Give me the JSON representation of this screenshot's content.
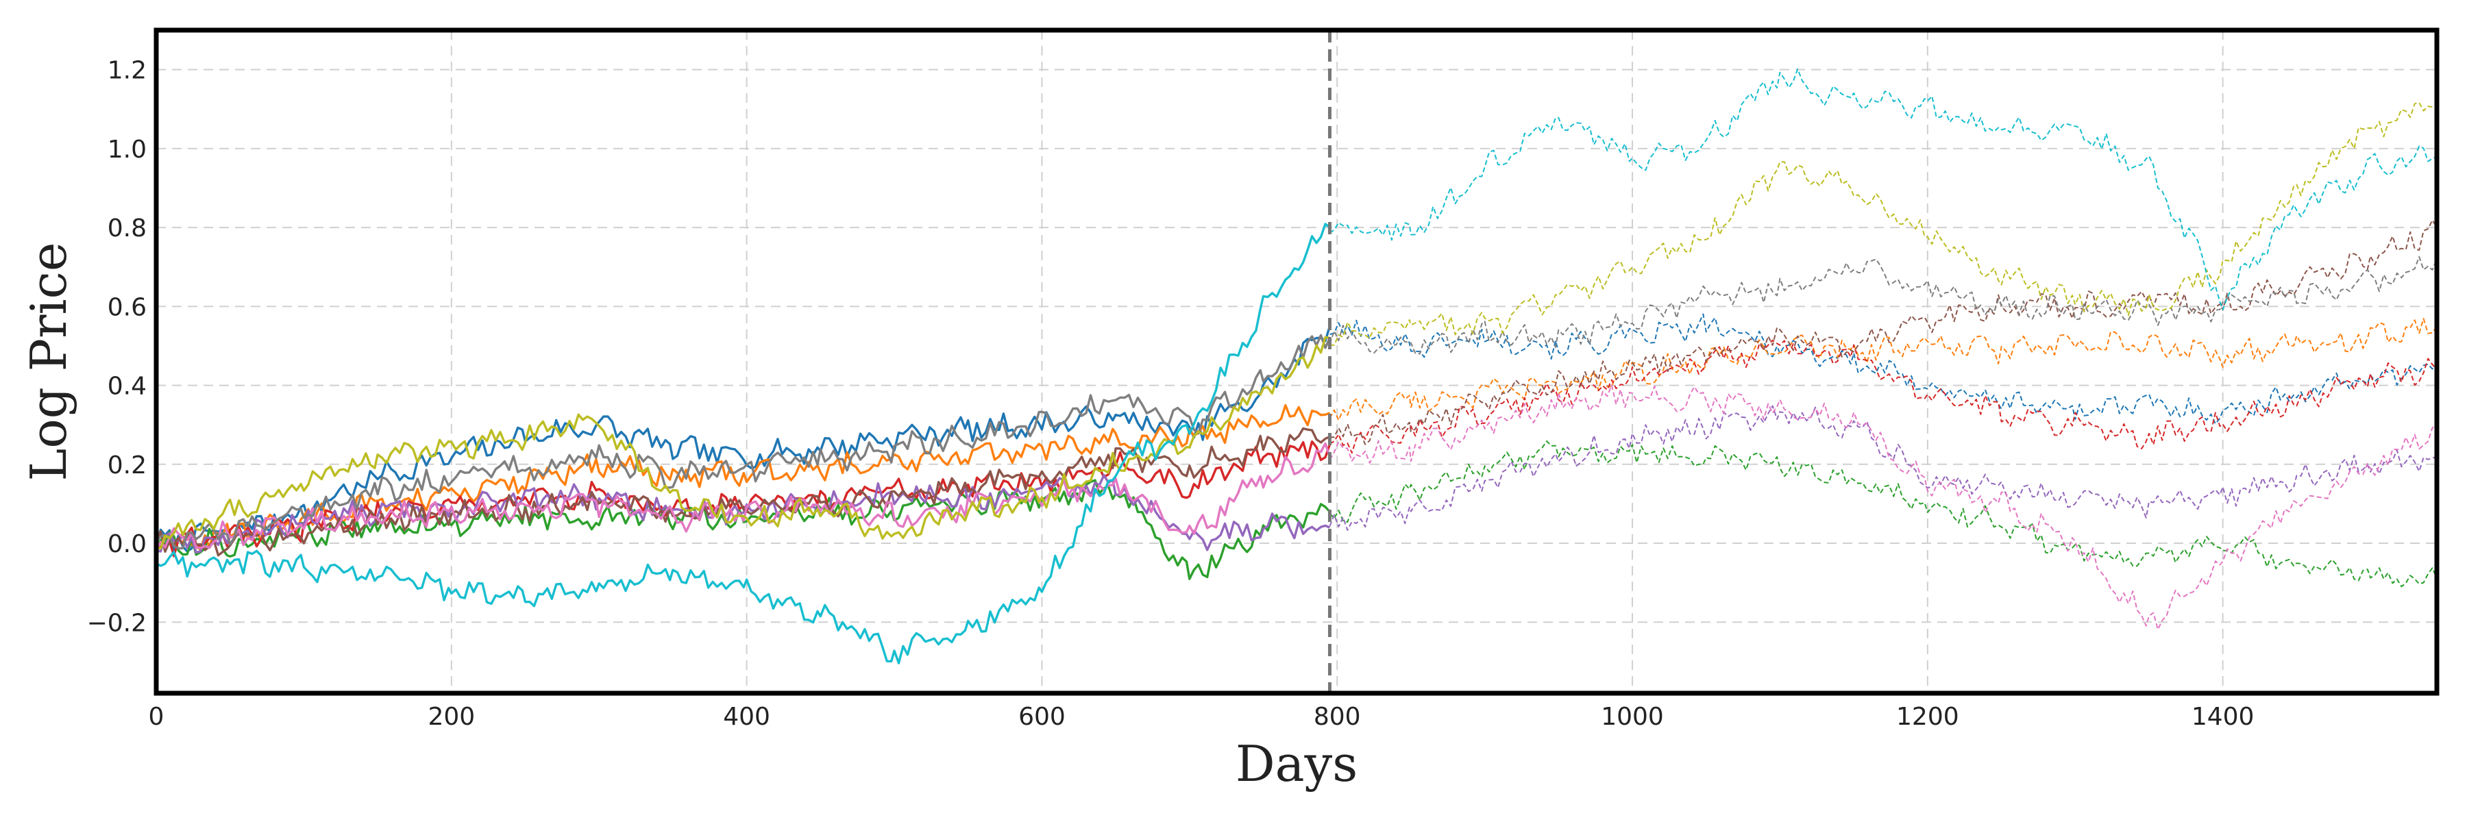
{
  "chart_data": {
    "type": "line",
    "title": "",
    "xlabel": "Days",
    "ylabel": "Log Price",
    "xlim": [
      0,
      1545
    ],
    "ylim": [
      -0.38,
      1.3
    ],
    "xticks": [
      0,
      200,
      400,
      600,
      800,
      1000,
      1200,
      1400
    ],
    "yticks": [
      -0.2,
      0.0,
      0.2,
      0.4,
      0.6,
      0.8,
      1.0,
      1.2
    ],
    "ytick_labels": [
      "−0.2",
      "0.0",
      "0.2",
      "0.4",
      "0.6",
      "0.8",
      "1.0",
      "1.2"
    ],
    "grid": true,
    "split_day": 795,
    "split_style": "dashed vertical line; solid historical series before it, thin dashed continuations after it",
    "series": [
      {
        "color": "#1f77b4",
        "x": [
          0,
          50,
          100,
          150,
          200,
          250,
          300,
          350,
          400,
          450,
          500,
          550,
          600,
          650,
          700,
          750,
          795,
          850,
          900,
          950,
          1000,
          1050,
          1100,
          1150,
          1200,
          1250,
          1300,
          1350,
          1400,
          1450,
          1500,
          1545
        ],
        "y": [
          0.0,
          0.03,
          0.08,
          0.17,
          0.22,
          0.27,
          0.3,
          0.24,
          0.22,
          0.24,
          0.27,
          0.29,
          0.3,
          0.32,
          0.28,
          0.38,
          0.55,
          0.5,
          0.52,
          0.5,
          0.52,
          0.55,
          0.5,
          0.46,
          0.4,
          0.36,
          0.34,
          0.35,
          0.33,
          0.38,
          0.42,
          0.45
        ]
      },
      {
        "color": "#ff7f0e",
        "x": [
          0,
          50,
          100,
          150,
          200,
          250,
          300,
          350,
          400,
          450,
          500,
          550,
          600,
          650,
          700,
          750,
          795,
          850,
          900,
          950,
          1000,
          1050,
          1100,
          1150,
          1200,
          1250,
          1300,
          1350,
          1400,
          1450,
          1500,
          1545
        ],
        "y": [
          0.0,
          0.02,
          0.06,
          0.1,
          0.12,
          0.16,
          0.2,
          0.17,
          0.18,
          0.19,
          0.21,
          0.22,
          0.24,
          0.26,
          0.27,
          0.31,
          0.33,
          0.36,
          0.38,
          0.4,
          0.43,
          0.46,
          0.5,
          0.49,
          0.5,
          0.49,
          0.5,
          0.5,
          0.48,
          0.5,
          0.52,
          0.55
        ]
      },
      {
        "color": "#2ca02c",
        "x": [
          0,
          50,
          100,
          150,
          200,
          250,
          300,
          350,
          400,
          450,
          500,
          550,
          600,
          650,
          700,
          750,
          795,
          850,
          900,
          950,
          1000,
          1050,
          1100,
          1150,
          1200,
          1250,
          1300,
          1350,
          1400,
          1450,
          1500,
          1545
        ],
        "y": [
          0.0,
          0.0,
          0.02,
          0.04,
          0.05,
          0.06,
          0.07,
          0.07,
          0.06,
          0.08,
          0.09,
          0.1,
          0.11,
          0.14,
          -0.08,
          0.04,
          0.08,
          0.12,
          0.2,
          0.24,
          0.22,
          0.22,
          0.2,
          0.16,
          0.1,
          0.05,
          -0.02,
          -0.04,
          0.0,
          -0.06,
          -0.08,
          -0.09
        ]
      },
      {
        "color": "#d62728",
        "x": [
          0,
          50,
          100,
          150,
          200,
          250,
          300,
          350,
          400,
          450,
          500,
          550,
          600,
          650,
          700,
          750,
          795,
          850,
          900,
          950,
          1000,
          1050,
          1100,
          1150,
          1200,
          1250,
          1300,
          1350,
          1400,
          1450,
          1500,
          1545
        ],
        "y": [
          0.0,
          0.01,
          0.04,
          0.08,
          0.09,
          0.11,
          0.12,
          0.08,
          0.1,
          0.11,
          0.13,
          0.14,
          0.16,
          0.2,
          0.14,
          0.22,
          0.25,
          0.28,
          0.33,
          0.38,
          0.42,
          0.46,
          0.5,
          0.47,
          0.38,
          0.33,
          0.3,
          0.27,
          0.3,
          0.36,
          0.42,
          0.44
        ]
      },
      {
        "color": "#9467bd",
        "x": [
          0,
          50,
          100,
          150,
          200,
          250,
          300,
          350,
          400,
          450,
          500,
          550,
          600,
          650,
          700,
          750,
          795,
          850,
          900,
          950,
          1000,
          1050,
          1100,
          1150,
          1200,
          1250,
          1300,
          1350,
          1400,
          1450,
          1500,
          1545
        ],
        "y": [
          0.0,
          0.01,
          0.06,
          0.08,
          0.09,
          0.11,
          0.12,
          0.07,
          0.09,
          0.1,
          0.12,
          0.11,
          0.13,
          0.15,
          0.0,
          0.05,
          0.04,
          0.08,
          0.15,
          0.22,
          0.26,
          0.3,
          0.32,
          0.3,
          0.17,
          0.14,
          0.11,
          0.1,
          0.12,
          0.16,
          0.2,
          0.22
        ]
      },
      {
        "color": "#8c564b",
        "x": [
          0,
          50,
          100,
          150,
          200,
          250,
          300,
          350,
          400,
          450,
          500,
          550,
          600,
          650,
          700,
          750,
          795,
          850,
          900,
          950,
          1000,
          1050,
          1100,
          1150,
          1200,
          1250,
          1300,
          1350,
          1400,
          1450,
          1500,
          1545
        ],
        "y": [
          0.0,
          0.0,
          0.03,
          0.06,
          0.07,
          0.09,
          0.1,
          0.08,
          0.09,
          0.1,
          0.12,
          0.14,
          0.17,
          0.22,
          0.2,
          0.24,
          0.27,
          0.3,
          0.36,
          0.4,
          0.45,
          0.48,
          0.52,
          0.5,
          0.56,
          0.6,
          0.6,
          0.62,
          0.6,
          0.66,
          0.72,
          0.8
        ]
      },
      {
        "color": "#e377c2",
        "x": [
          0,
          50,
          100,
          150,
          200,
          250,
          300,
          350,
          400,
          450,
          500,
          550,
          600,
          650,
          700,
          750,
          795,
          850,
          900,
          950,
          1000,
          1050,
          1100,
          1150,
          1200,
          1250,
          1300,
          1350,
          1400,
          1450,
          1500,
          1545
        ],
        "y": [
          0.0,
          0.02,
          0.05,
          0.07,
          0.08,
          0.09,
          0.1,
          0.06,
          0.08,
          0.09,
          0.07,
          0.09,
          0.12,
          0.15,
          0.02,
          0.17,
          0.22,
          0.24,
          0.3,
          0.35,
          0.38,
          0.36,
          0.34,
          0.32,
          0.15,
          0.1,
          0.0,
          -0.2,
          -0.05,
          0.1,
          0.2,
          0.3
        ]
      },
      {
        "color": "#7f7f7f",
        "x": [
          0,
          50,
          100,
          150,
          200,
          250,
          300,
          350,
          400,
          450,
          500,
          550,
          600,
          650,
          700,
          750,
          795,
          850,
          900,
          950,
          1000,
          1050,
          1100,
          1150,
          1200,
          1250,
          1300,
          1350,
          1400,
          1450,
          1500,
          1545
        ],
        "y": [
          0.0,
          0.03,
          0.08,
          0.13,
          0.16,
          0.19,
          0.22,
          0.17,
          0.19,
          0.21,
          0.24,
          0.27,
          0.3,
          0.37,
          0.3,
          0.42,
          0.52,
          0.5,
          0.53,
          0.52,
          0.56,
          0.62,
          0.65,
          0.7,
          0.65,
          0.6,
          0.6,
          0.58,
          0.6,
          0.63,
          0.66,
          0.72
        ]
      },
      {
        "color": "#bcbd22",
        "x": [
          0,
          50,
          100,
          150,
          200,
          250,
          300,
          350,
          400,
          450,
          500,
          550,
          600,
          650,
          700,
          750,
          795,
          850,
          900,
          950,
          1000,
          1050,
          1100,
          1150,
          1200,
          1250,
          1300,
          1350,
          1400,
          1450,
          1500,
          1545
        ],
        "y": [
          0.0,
          0.08,
          0.15,
          0.22,
          0.24,
          0.27,
          0.3,
          0.12,
          0.05,
          0.1,
          0.02,
          0.08,
          0.12,
          0.2,
          0.26,
          0.38,
          0.52,
          0.55,
          0.55,
          0.62,
          0.7,
          0.78,
          0.95,
          0.9,
          0.78,
          0.68,
          0.62,
          0.6,
          0.7,
          0.9,
          1.05,
          1.1
        ]
      },
      {
        "color": "#17becf",
        "x": [
          0,
          50,
          100,
          150,
          200,
          250,
          300,
          350,
          400,
          450,
          500,
          550,
          600,
          650,
          700,
          750,
          795,
          850,
          900,
          950,
          1000,
          1050,
          1100,
          1150,
          1200,
          1250,
          1300,
          1350,
          1400,
          1450,
          1500,
          1545
        ],
        "y": [
          -0.05,
          -0.05,
          -0.06,
          -0.08,
          -0.12,
          -0.14,
          -0.1,
          -0.08,
          -0.12,
          -0.18,
          -0.28,
          -0.22,
          -0.12,
          0.2,
          0.28,
          0.6,
          0.8,
          0.78,
          0.95,
          1.08,
          0.97,
          1.02,
          1.18,
          1.12,
          1.1,
          1.05,
          1.05,
          0.95,
          0.62,
          0.85,
          0.95,
          0.98
        ]
      }
    ]
  }
}
